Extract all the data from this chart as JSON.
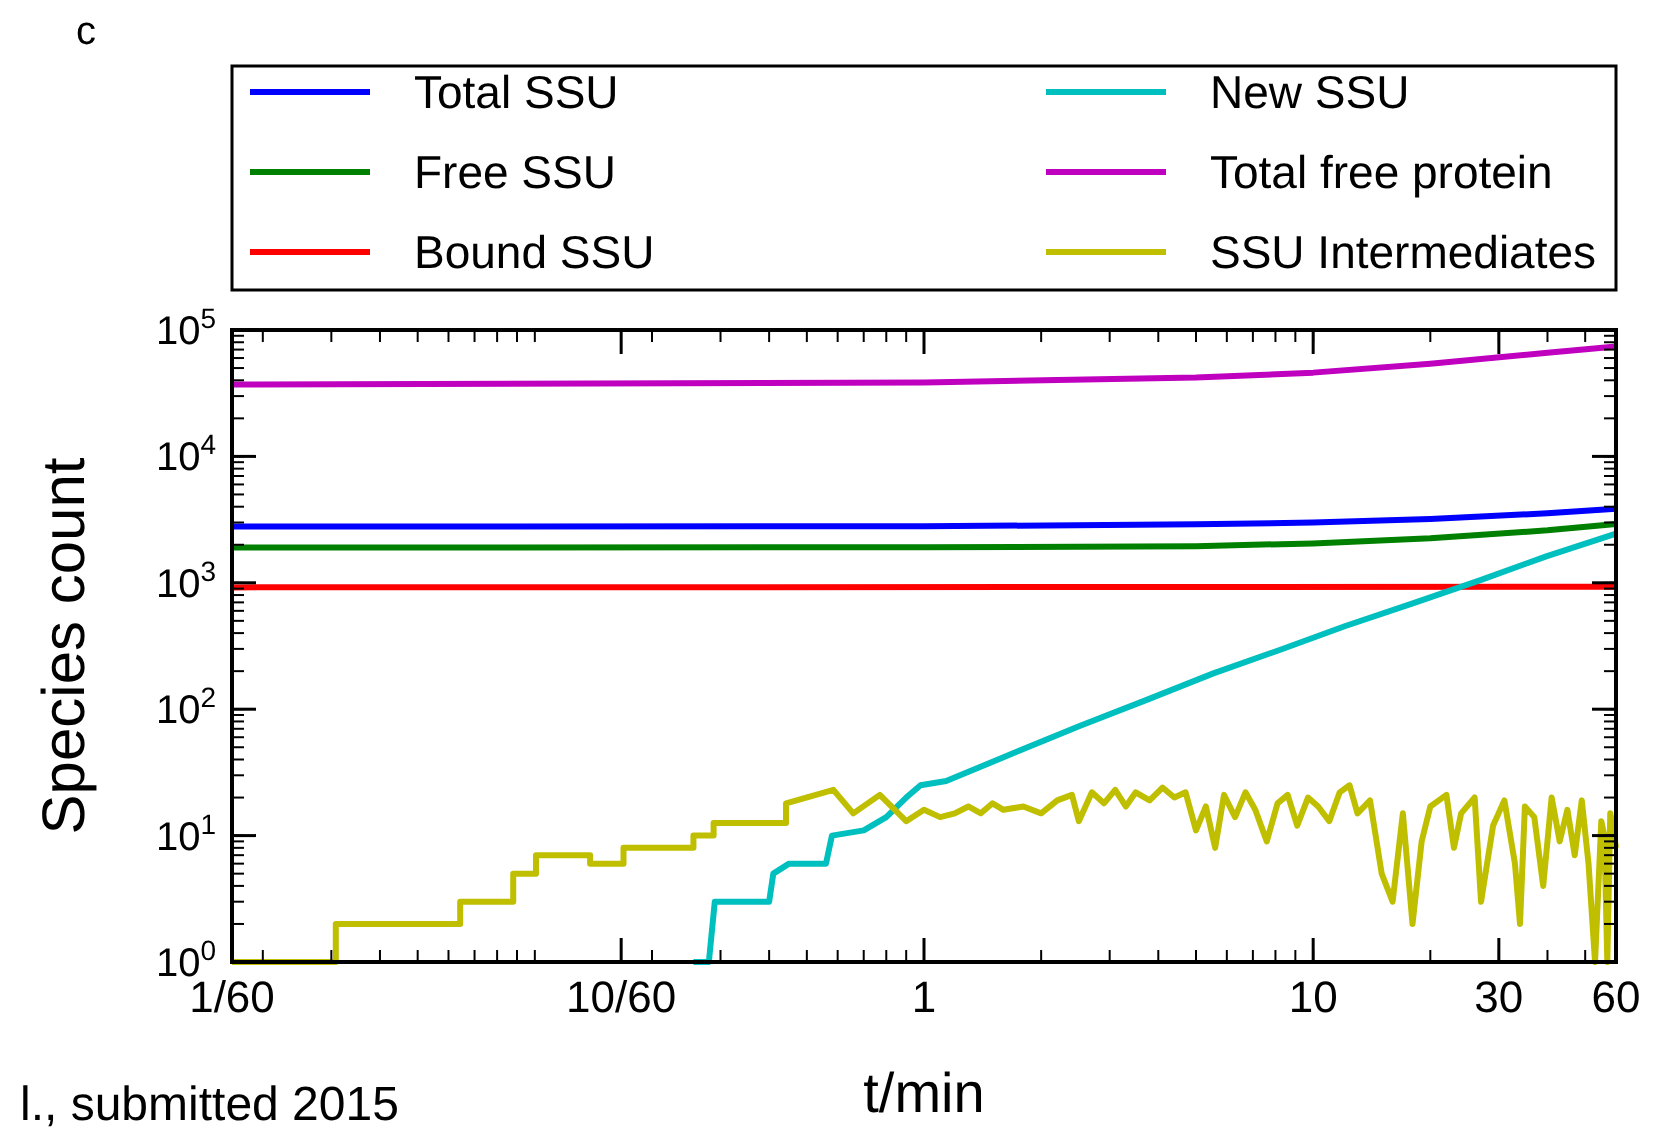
{
  "chart_data": {
    "type": "line",
    "xlabel": "t/min",
    "ylabel": "Species count",
    "log": "xy",
    "grid": false,
    "legend": "top",
    "line_style": "solid",
    "xlim": [
      0.016667,
      60
    ],
    "ylim": [
      1,
      100000
    ],
    "xticks": [
      {
        "value": 0.016667,
        "label": "1/60"
      },
      {
        "value": 0.16667,
        "label": "10/60"
      },
      1,
      10,
      30,
      60
    ],
    "yticks": [
      {
        "value": 1,
        "label": "10$^{0}$"
      },
      {
        "value": 10,
        "label": "10$^{1}$"
      },
      {
        "value": 100,
        "label": "10$^{2}$"
      },
      {
        "value": 1000,
        "label": "10$^{3}$"
      },
      {
        "value": 10000,
        "label": "10$^{4}$"
      },
      {
        "value": 100000,
        "label": "10$^{5}$"
      }
    ],
    "annotations": [
      "c",
      "l., submitted 2015"
    ],
    "series": [
      {
        "name": "Total SSU",
        "color": "#0000ff",
        "x": [
          0.016667,
          1,
          5,
          10,
          20,
          40,
          60
        ],
        "values": [
          2790,
          2800,
          2900,
          3000,
          3200,
          3550,
          3860
        ]
      },
      {
        "name": "Free SSU",
        "color": "#008000",
        "x": [
          0.016667,
          1,
          5,
          10,
          20,
          40,
          60
        ],
        "values": [
          1900,
          1910,
          1950,
          2050,
          2250,
          2600,
          2920
        ]
      },
      {
        "name": "Bound SSU",
        "color": "#ff0000",
        "x": [
          0.016667,
          60
        ],
        "values": [
          920,
          930
        ]
      },
      {
        "name": "New SSU",
        "color": "#00bfbf",
        "x": [
          0.2556,
          0.28,
          0.29,
          0.4,
          0.41,
          0.45,
          0.56,
          0.58,
          0.7,
          0.8,
          0.9,
          0.98,
          1.14,
          1.7,
          2.52,
          3.72,
          5.54,
          8.2,
          12.1,
          18.1,
          26.9,
          39.7,
          60
        ],
        "values": [
          1,
          1,
          3,
          3,
          5,
          6,
          6,
          10,
          11,
          14,
          20,
          25,
          27,
          45,
          74,
          118,
          192,
          294,
          455,
          690,
          1050,
          1620,
          2450
        ]
      },
      {
        "name": "Total free protein",
        "color": "#bf00bf",
        "x": [
          0.016667,
          1,
          5,
          10,
          20,
          40,
          60
        ],
        "values": [
          37000,
          38500,
          42000,
          46000,
          54000,
          66000,
          74000
        ]
      },
      {
        "name": "SSU Intermediates",
        "color": "#bfbf00",
        "x": [
          0.016667,
          0.0308,
          0.0308,
          0.0643,
          0.0643,
          0.088,
          0.088,
          0.1007,
          0.1007,
          0.1387,
          0.1387,
          0.169,
          0.169,
          0.2556,
          0.2556,
          0.288,
          0.288,
          0.442,
          0.442,
          0.585,
          0.658,
          0.77,
          0.9,
          1.0,
          1.1,
          1.2,
          1.3,
          1.4,
          1.5,
          1.6,
          1.8,
          2.0,
          2.2,
          2.4,
          2.5,
          2.7,
          2.9,
          3.1,
          3.3,
          3.5,
          3.8,
          4.1,
          4.4,
          4.7,
          5.0,
          5.3,
          5.6,
          5.9,
          6.3,
          6.7,
          7.1,
          7.6,
          8.1,
          8.6,
          9.1,
          9.7,
          10.3,
          11,
          11.7,
          12.4,
          13,
          14,
          15,
          16,
          17,
          18,
          19,
          20,
          22,
          23,
          24,
          26,
          27,
          29,
          31,
          33,
          34,
          35,
          37,
          39,
          41,
          43,
          45,
          47,
          49,
          51,
          53,
          55,
          56,
          57,
          58,
          60
        ],
        "values": [
          1,
          1,
          2,
          2,
          3,
          3,
          5,
          5,
          7,
          7,
          6,
          6,
          8,
          8,
          10,
          10,
          12.6,
          12.6,
          18,
          23,
          15,
          21,
          13,
          16,
          14,
          15,
          17,
          15,
          18,
          16,
          17,
          15,
          19,
          21,
          13,
          22,
          18,
          23,
          17,
          22,
          19,
          24,
          20,
          22,
          11,
          17,
          8,
          21,
          14,
          22,
          16,
          9,
          18,
          21,
          12,
          20,
          17,
          13,
          22,
          25,
          15,
          19,
          5,
          3,
          15,
          2,
          9,
          17,
          21,
          8,
          15,
          20,
          3,
          12,
          19,
          6,
          2,
          17,
          14,
          4,
          20,
          9,
          16,
          7,
          19,
          6,
          1,
          13,
          10,
          1,
          15,
          8
        ]
      }
    ]
  }
}
